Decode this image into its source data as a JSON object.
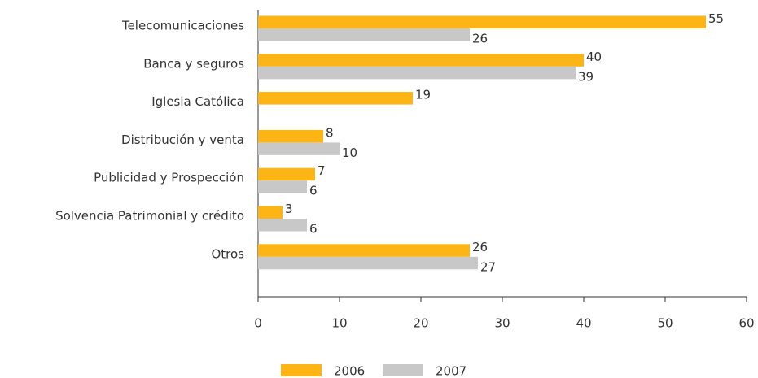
{
  "chart_data": {
    "type": "bar",
    "orientation": "horizontal",
    "categories": [
      "Telecomunicaciones",
      "Banca y seguros",
      "Iglesia Católica",
      "Distribución y venta",
      "Publicidad y Prospección",
      "Solvencia Patrimonial y crédito",
      "Otros"
    ],
    "series": [
      {
        "name": "2006",
        "color": "#fdb515",
        "values": [
          55,
          40,
          19,
          8,
          7,
          3,
          26
        ]
      },
      {
        "name": "2007",
        "color": "#c8c8c8",
        "values": [
          26,
          39,
          null,
          10,
          6,
          6,
          27
        ]
      }
    ],
    "xlim": [
      0,
      60
    ],
    "xticks": [
      0,
      10,
      20,
      30,
      40,
      50,
      60
    ],
    "legend": "bottom"
  }
}
